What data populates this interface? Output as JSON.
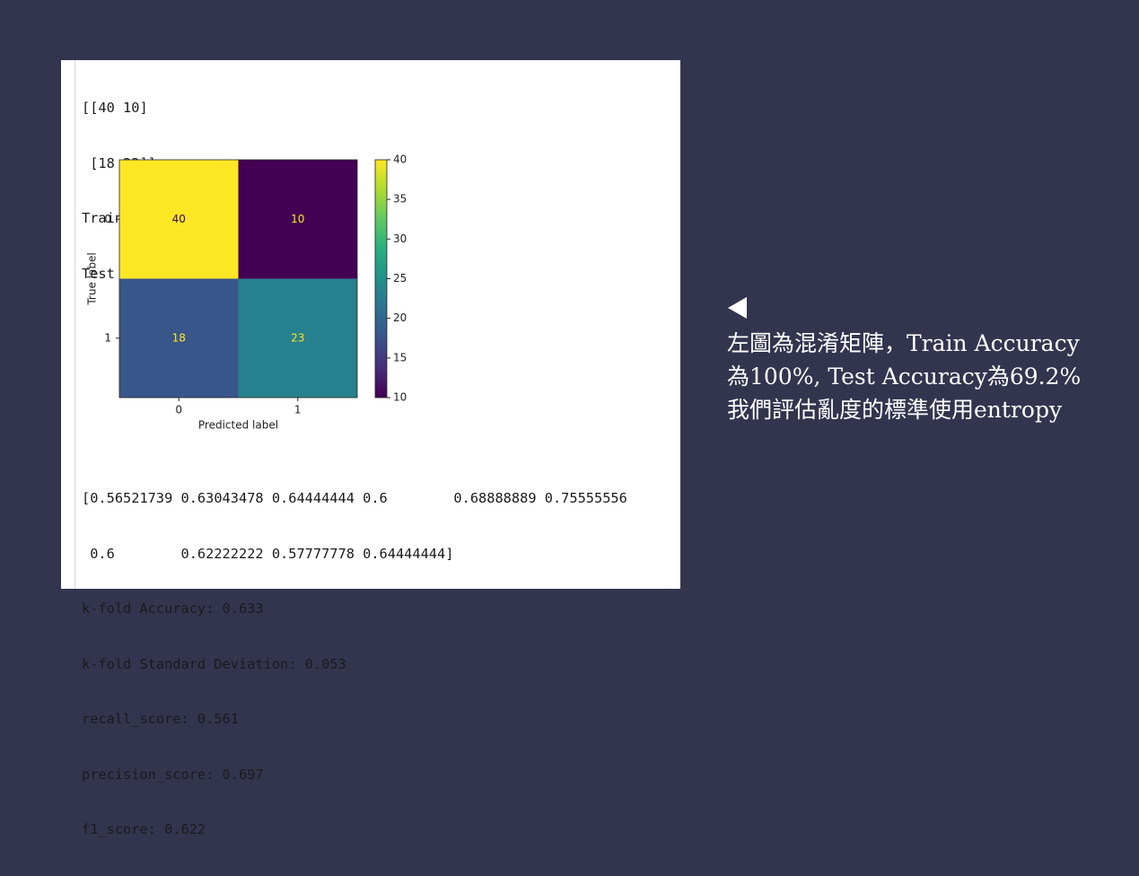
{
  "output_top": [
    "[[40 10]",
    " [18 23]]",
    "Train Accuracy: 1.000",
    "Test Accuracy: 0.692"
  ],
  "chart_data": {
    "type": "heatmap",
    "x_categories": [
      "0",
      "1"
    ],
    "y_categories": [
      "0",
      "1"
    ],
    "values": [
      [
        40,
        10
      ],
      [
        18,
        23
      ]
    ],
    "xlabel": "Predicted label",
    "ylabel": "True label",
    "colormap": "viridis",
    "clim": [
      10,
      40
    ],
    "colorbar_ticks": [
      10,
      15,
      20,
      25,
      30,
      35,
      40
    ]
  },
  "output_bottom": [
    "[0.56521739 0.63043478 0.64444444 0.6        0.68888889 0.75555556",
    " 0.6        0.62222222 0.57777778 0.64444444]",
    "k-fold Accuracy: 0.633",
    "k-fold Standard Deviation: 0.053",
    "recall_score: 0.561",
    "precision_score: 0.697",
    "f1_score: 0.622"
  ],
  "caption": [
    "左圖為混淆矩陣，Train Accuracy",
    "為100%, Test Accuracy為69.2%",
    "我們評估亂度的標準使用entropy"
  ]
}
